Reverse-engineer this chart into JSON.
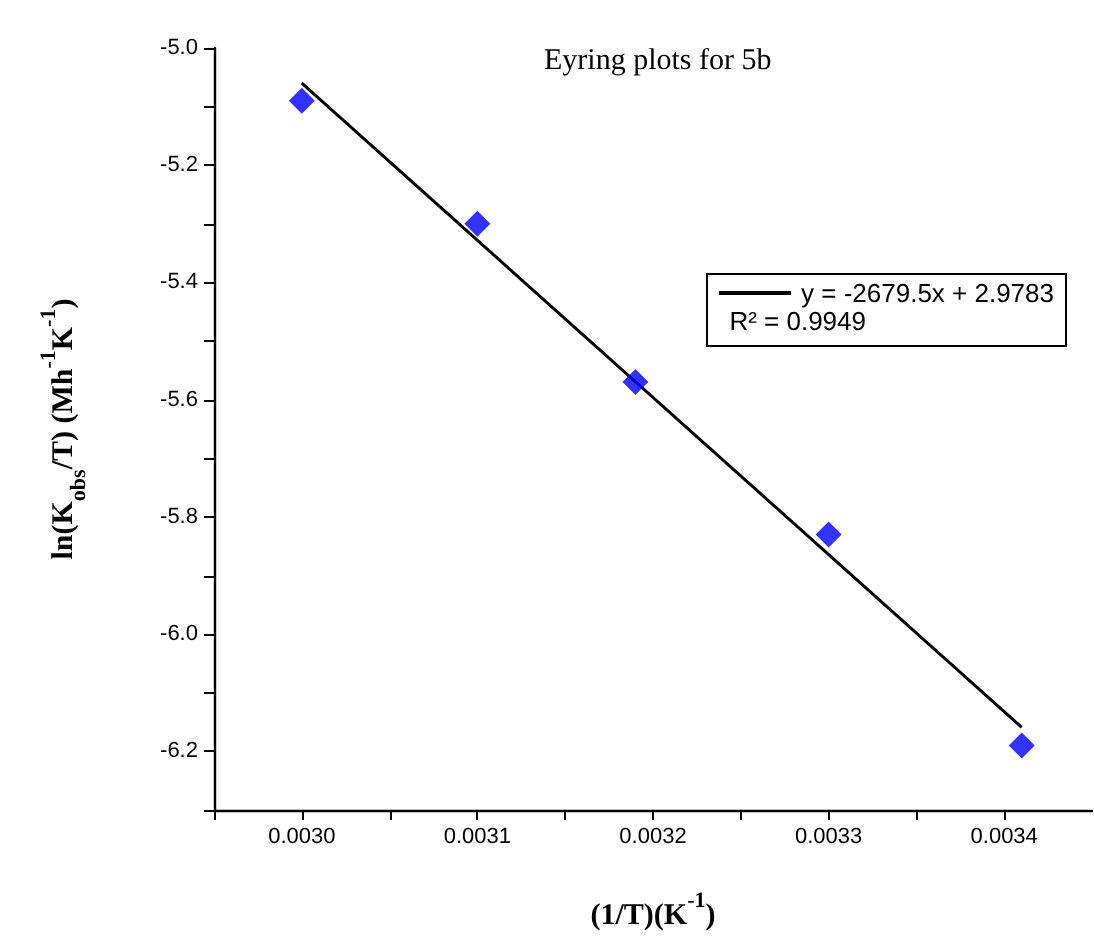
{
  "chart_data": {
    "type": "scatter",
    "title": "Eyring plots for 5b",
    "xlabel": "(1/T)(K$^{-1}$)",
    "ylabel": "ln(K$_{obs}$/T) (Mh$^{-1}$K$^{-1}$)",
    "x": [
      0.003,
      0.0031,
      0.00319,
      0.0033,
      0.00341
    ],
    "series": [
      {
        "color": "#0000ff",
        "marker": "diamond",
        "values": [
          -5.09,
          -5.3,
          -5.57,
          -5.83,
          -6.19
        ]
      },
      {
        "type": "line",
        "name": "y = -2679.5x + 2.9783",
        "color": "#000000",
        "marker": "none",
        "line_style": "solid",
        "x": [
          0.003,
          0.00341
        ],
        "values": [
          -5.06,
          -6.159
        ]
      }
    ],
    "annotations": [
      "R² = 0.9949"
    ],
    "xlim": [
      0.00295,
      0.00345
    ],
    "xticks": [
      {
        "value": 0.00295,
        "label": null
      },
      {
        "value": 0.003,
        "label": "0.0030"
      },
      {
        "value": 0.00305,
        "label": null
      },
      {
        "value": 0.0031,
        "label": "0.0031"
      },
      {
        "value": 0.00315,
        "label": null
      },
      {
        "value": 0.0032,
        "label": "0.0032"
      },
      {
        "value": 0.00325,
        "label": null
      },
      {
        "value": 0.0033,
        "label": "0.0033"
      },
      {
        "value": 0.00335,
        "label": null
      },
      {
        "value": 0.0034,
        "label": "0.0034"
      }
    ],
    "ylim": [
      -6.3,
      -5.0
    ],
    "yticks": [
      {
        "value": -6.3,
        "label": null
      },
      {
        "value": -6.2,
        "label": "-6.2"
      },
      {
        "value": -6.1,
        "label": null
      },
      {
        "value": -6.0,
        "label": "-6.0"
      },
      {
        "value": -5.9,
        "label": null
      },
      {
        "value": -5.8,
        "label": "-5.8"
      },
      {
        "value": -5.7,
        "label": null
      },
      {
        "value": -5.6,
        "label": "-5.6"
      },
      {
        "value": -5.5,
        "label": null
      },
      {
        "value": -5.4,
        "label": "-5.4"
      },
      {
        "value": -5.3,
        "label": null
      },
      {
        "value": -5.2,
        "label": "-5.2"
      },
      {
        "value": -5.1,
        "label": null
      },
      {
        "value": -5.0,
        "label": "-5.0"
      }
    ],
    "grid": false,
    "legend": "top right"
  }
}
